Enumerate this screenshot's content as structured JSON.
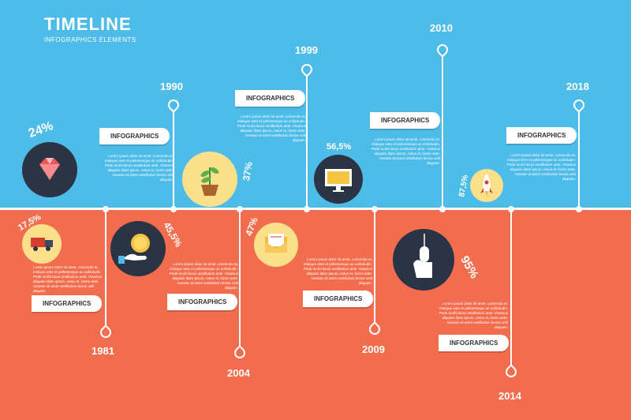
{
  "title": "TIMELINE",
  "subtitle": "INFOGRAPHICS ELEMENTS",
  "colors": {
    "top_bg": "#4dbce8",
    "bottom_bg": "#f26d4d",
    "dark_circle": "#2b3445",
    "light_circle": "#fbe08c"
  },
  "label_text": "INFOGRAPHICS",
  "lorem": "Lorem ipsum dolor sit amet, commodo et, tristique ante et pellentesque ac sollicitudin. Pede morbi lacus vestibulum ante. Vivamus aliquam diam ipsum, netus et, lorem ante. Aenean sit amet vestibulum lectus velit aliquam.",
  "events": [
    {
      "year": "1981",
      "percent": "17,5%",
      "icon": "truck-icon"
    },
    {
      "year": "1990",
      "percent": "24%",
      "icon": "diamond-icon"
    },
    {
      "year": "2004",
      "percent": "45,5%",
      "icon": "money-hand-icon"
    },
    {
      "year": "1999",
      "percent": "37%",
      "icon": "plant-icon"
    },
    {
      "year": "2009",
      "percent": "47%",
      "icon": "envelope-icon"
    },
    {
      "year": "2010",
      "percent": "56,5%",
      "icon": "monitor-icon"
    },
    {
      "year": "2014",
      "percent": "95%",
      "icon": "mouse-icon"
    },
    {
      "year": "2018",
      "percent": "87,5%",
      "icon": "rocket-icon"
    }
  ]
}
